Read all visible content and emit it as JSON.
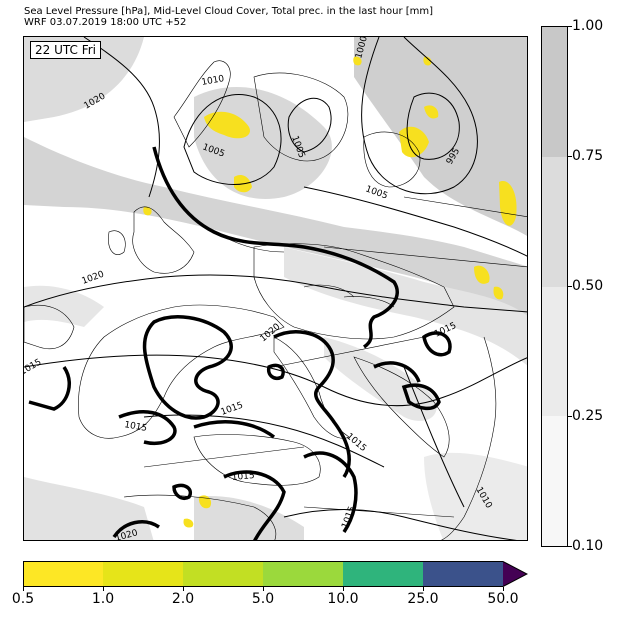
{
  "header": {
    "title_line1": "Sea Level Pressure [hPa], Mid-Level Cloud Cover, Total prec. in the last hour [mm]",
    "title_line2": "WRF 03.07.2019 18:00 UTC +52"
  },
  "map": {
    "time_label": "22 UTC Fri",
    "isobar_labels": [
      "1020",
      "1010",
      "1005",
      "1000",
      "1005",
      "995",
      "1005",
      "1020",
      "1015",
      "1020",
      "1015",
      "1015",
      "1015",
      "1015",
      "1015",
      "1015",
      "1020",
      "1010"
    ],
    "colors": {
      "cloud_dark": "#c8c8c8",
      "cloud_mid": "#dcdcdc",
      "cloud_light": "#ebebeb",
      "precip_yellow": "#f7e01f",
      "land_border": "#000000"
    }
  },
  "cloud_colorbar": {
    "labels": [
      "1.00",
      "0.75",
      "0.50",
      "0.25",
      "0.10"
    ],
    "colors": [
      "#c8c8c8",
      "#dcdcdc",
      "#ebebeb",
      "#f7f7f7"
    ]
  },
  "precip_colorbar": {
    "labels": [
      "0.5",
      "1.0",
      "2.0",
      "5.0",
      "10.0",
      "25.0",
      "50.0"
    ],
    "colors": [
      "#fde725",
      "#e6e419",
      "#c2df23",
      "#9bd93c",
      "#2fb47c",
      "#3b528b",
      "#440154"
    ]
  }
}
